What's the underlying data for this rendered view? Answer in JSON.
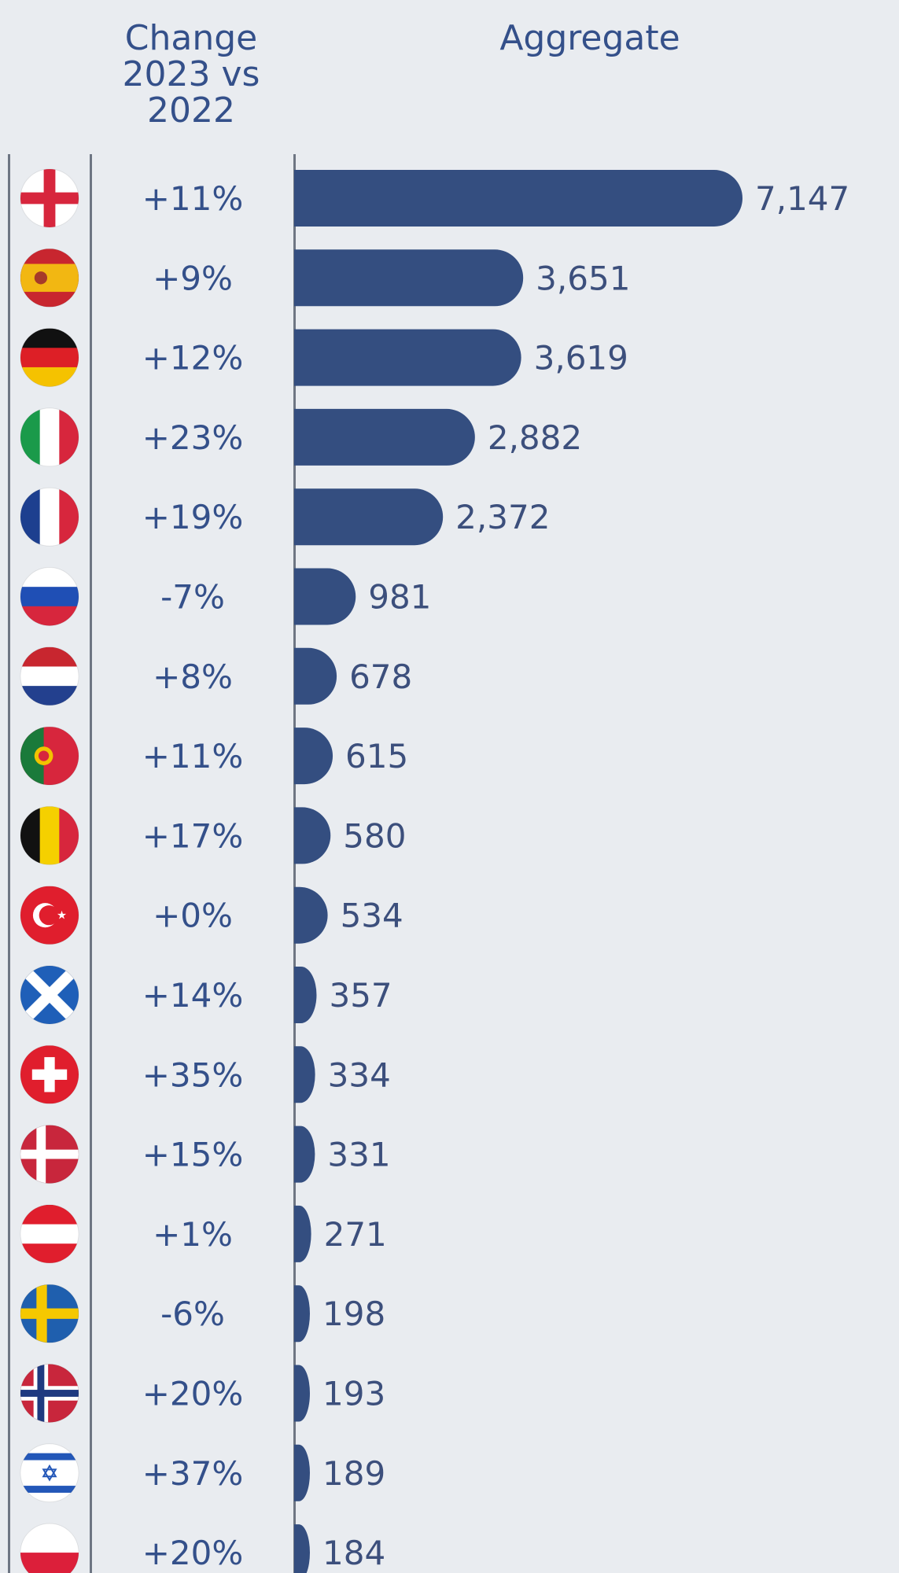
{
  "headers": {
    "change": "Change 2023 vs 2022",
    "aggregate": "Aggregate"
  },
  "colors": {
    "bar": "#344e80",
    "text": "#34508a",
    "background": "#e9ecf0",
    "axis": "#6e7683"
  },
  "chart_data": {
    "type": "bar",
    "orientation": "horizontal",
    "rows": [
      {
        "flag": "england-flag-icon",
        "change": "+11%",
        "value": 7147,
        "label": "7,147"
      },
      {
        "flag": "spain-flag-icon",
        "change": "+9%",
        "value": 3651,
        "label": "3,651"
      },
      {
        "flag": "germany-flag-icon",
        "change": "+12%",
        "value": 3619,
        "label": "3,619"
      },
      {
        "flag": "italy-flag-icon",
        "change": "+23%",
        "value": 2882,
        "label": "2,882"
      },
      {
        "flag": "france-flag-icon",
        "change": "+19%",
        "value": 2372,
        "label": "2,372"
      },
      {
        "flag": "russia-flag-icon",
        "change": "-7%",
        "value": 981,
        "label": "981"
      },
      {
        "flag": "netherlands-flag-icon",
        "change": "+8%",
        "value": 678,
        "label": "678"
      },
      {
        "flag": "portugal-flag-icon",
        "change": "+11%",
        "value": 615,
        "label": "615"
      },
      {
        "flag": "belgium-flag-icon",
        "change": "+17%",
        "value": 580,
        "label": "580"
      },
      {
        "flag": "turkey-flag-icon",
        "change": "+0%",
        "value": 534,
        "label": "534"
      },
      {
        "flag": "scotland-flag-icon",
        "change": "+14%",
        "value": 357,
        "label": "357"
      },
      {
        "flag": "switzerland-flag-icon",
        "change": "+35%",
        "value": 334,
        "label": "334"
      },
      {
        "flag": "denmark-flag-icon",
        "change": "+15%",
        "value": 331,
        "label": "331"
      },
      {
        "flag": "austria-flag-icon",
        "change": "+1%",
        "value": 271,
        "label": "271"
      },
      {
        "flag": "sweden-flag-icon",
        "change": "-6%",
        "value": 198,
        "label": "198"
      },
      {
        "flag": "norway-flag-icon",
        "change": "+20%",
        "value": 193,
        "label": "193"
      },
      {
        "flag": "israel-flag-icon",
        "change": "+37%",
        "value": 189,
        "label": "189"
      },
      {
        "flag": "poland-flag-icon",
        "change": "+20%",
        "value": 184,
        "label": "184"
      }
    ]
  }
}
